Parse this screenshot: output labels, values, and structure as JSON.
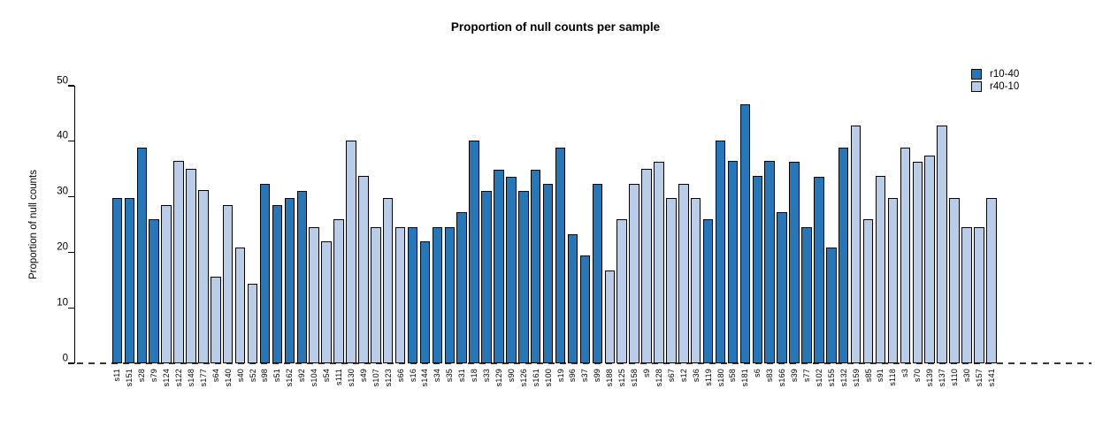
{
  "chart_data": {
    "type": "bar",
    "title": "Proportion of null counts per sample",
    "xlabel": "",
    "ylabel": "Proportion of null counts",
    "ylim": [
      0,
      50
    ],
    "yticks": [
      0,
      10,
      20,
      30,
      40,
      50
    ],
    "grid": false,
    "legend_position": "top-right",
    "series": [
      {
        "name": "r10-40",
        "color": "#2478b9"
      },
      {
        "name": "r40-10",
        "color": "#b9cce8"
      }
    ],
    "bars": [
      {
        "label": "s11",
        "value": 29.8,
        "series": "r10-40"
      },
      {
        "label": "s151",
        "value": 29.8,
        "series": "r10-40"
      },
      {
        "label": "s28",
        "value": 38.9,
        "series": "r10-40"
      },
      {
        "label": "s79",
        "value": 26.0,
        "series": "r10-40"
      },
      {
        "label": "s124",
        "value": 28.5,
        "series": "r40-10"
      },
      {
        "label": "s122",
        "value": 36.4,
        "series": "r40-10"
      },
      {
        "label": "s148",
        "value": 35.0,
        "series": "r40-10"
      },
      {
        "label": "s177",
        "value": 31.2,
        "series": "r40-10"
      },
      {
        "label": "s64",
        "value": 15.6,
        "series": "r40-10"
      },
      {
        "label": "s140",
        "value": 28.5,
        "series": "r40-10"
      },
      {
        "label": "s40",
        "value": 20.8,
        "series": "r40-10"
      },
      {
        "label": "s52",
        "value": 14.4,
        "series": "r40-10"
      },
      {
        "label": "s98",
        "value": 32.4,
        "series": "r10-40"
      },
      {
        "label": "s51",
        "value": 28.5,
        "series": "r10-40"
      },
      {
        "label": "s162",
        "value": 29.8,
        "series": "r10-40"
      },
      {
        "label": "s92",
        "value": 31.1,
        "series": "r10-40"
      },
      {
        "label": "s104",
        "value": 24.5,
        "series": "r40-10"
      },
      {
        "label": "s54",
        "value": 22.0,
        "series": "r40-10"
      },
      {
        "label": "s111",
        "value": 26.0,
        "series": "r40-10"
      },
      {
        "label": "s130",
        "value": 40.2,
        "series": "r40-10"
      },
      {
        "label": "s49",
        "value": 33.7,
        "series": "r40-10"
      },
      {
        "label": "s107",
        "value": 24.5,
        "series": "r40-10"
      },
      {
        "label": "s123",
        "value": 29.8,
        "series": "r40-10"
      },
      {
        "label": "s66",
        "value": 24.5,
        "series": "r40-10"
      },
      {
        "label": "s16",
        "value": 24.5,
        "series": "r10-40"
      },
      {
        "label": "s144",
        "value": 22.0,
        "series": "r10-40"
      },
      {
        "label": "s34",
        "value": 24.5,
        "series": "r10-40"
      },
      {
        "label": "s35",
        "value": 24.5,
        "series": "r10-40"
      },
      {
        "label": "s31",
        "value": 27.3,
        "series": "r10-40"
      },
      {
        "label": "s18",
        "value": 40.2,
        "series": "r10-40"
      },
      {
        "label": "s33",
        "value": 31.1,
        "series": "r10-40"
      },
      {
        "label": "s129",
        "value": 34.9,
        "series": "r10-40"
      },
      {
        "label": "s90",
        "value": 33.6,
        "series": "r10-40"
      },
      {
        "label": "s126",
        "value": 31.1,
        "series": "r10-40"
      },
      {
        "label": "s161",
        "value": 34.9,
        "series": "r10-40"
      },
      {
        "label": "s100",
        "value": 32.4,
        "series": "r10-40"
      },
      {
        "label": "s19",
        "value": 38.8,
        "series": "r10-40"
      },
      {
        "label": "s96",
        "value": 23.3,
        "series": "r10-40"
      },
      {
        "label": "s37",
        "value": 19.4,
        "series": "r10-40"
      },
      {
        "label": "s99",
        "value": 32.4,
        "series": "r10-40"
      },
      {
        "label": "s188",
        "value": 16.8,
        "series": "r40-10"
      },
      {
        "label": "s125",
        "value": 26.0,
        "series": "r40-10"
      },
      {
        "label": "s158",
        "value": 32.4,
        "series": "r40-10"
      },
      {
        "label": "s9",
        "value": 35.0,
        "series": "r40-10"
      },
      {
        "label": "s128",
        "value": 36.3,
        "series": "r40-10"
      },
      {
        "label": "s67",
        "value": 29.8,
        "series": "r40-10"
      },
      {
        "label": "s12",
        "value": 32.4,
        "series": "r40-10"
      },
      {
        "label": "s36",
        "value": 29.8,
        "series": "r40-10"
      },
      {
        "label": "s119",
        "value": 26.0,
        "series": "r10-40"
      },
      {
        "label": "s180",
        "value": 40.1,
        "series": "r10-40"
      },
      {
        "label": "s58",
        "value": 36.4,
        "series": "r10-40"
      },
      {
        "label": "s181",
        "value": 46.7,
        "series": "r10-40"
      },
      {
        "label": "s6",
        "value": 33.7,
        "series": "r10-40"
      },
      {
        "label": "s83",
        "value": 36.4,
        "series": "r10-40"
      },
      {
        "label": "s166",
        "value": 27.3,
        "series": "r10-40"
      },
      {
        "label": "s39",
        "value": 36.3,
        "series": "r10-40"
      },
      {
        "label": "s77",
        "value": 24.5,
        "series": "r10-40"
      },
      {
        "label": "s102",
        "value": 33.6,
        "series": "r10-40"
      },
      {
        "label": "s155",
        "value": 20.8,
        "series": "r10-40"
      },
      {
        "label": "s132",
        "value": 38.9,
        "series": "r10-40"
      },
      {
        "label": "s159",
        "value": 42.8,
        "series": "r40-10"
      },
      {
        "label": "s85",
        "value": 26.0,
        "series": "r40-10"
      },
      {
        "label": "s91",
        "value": 33.7,
        "series": "r40-10"
      },
      {
        "label": "s118",
        "value": 29.8,
        "series": "r40-10"
      },
      {
        "label": "s3",
        "value": 38.8,
        "series": "r40-10"
      },
      {
        "label": "s70",
        "value": 36.3,
        "series": "r40-10"
      },
      {
        "label": "s139",
        "value": 37.5,
        "series": "r40-10"
      },
      {
        "label": "s137",
        "value": 42.8,
        "series": "r40-10"
      },
      {
        "label": "s110",
        "value": 29.8,
        "series": "r40-10"
      },
      {
        "label": "s30",
        "value": 24.5,
        "series": "r40-10"
      },
      {
        "label": "s157",
        "value": 24.5,
        "series": "r40-10"
      },
      {
        "label": "s141",
        "value": 29.8,
        "series": "r40-10"
      }
    ]
  }
}
